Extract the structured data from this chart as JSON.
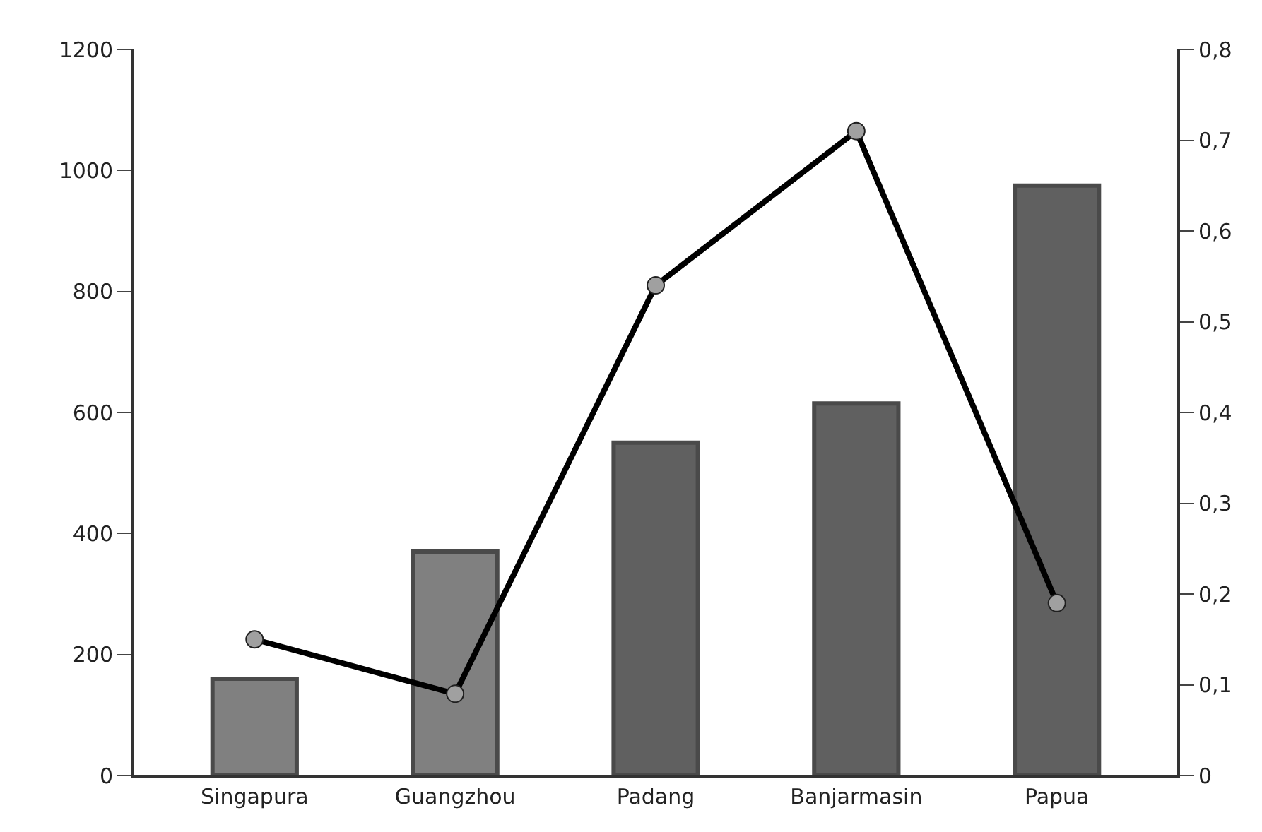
{
  "chart_data": {
    "type": "bar",
    "categories": [
      "Singapura",
      "Guangzhou",
      "Padang",
      "Banjarmasin",
      "Papua"
    ],
    "series": [
      {
        "type": "bar",
        "colors": [
          "#808080",
          "#808080",
          "#606060",
          "#606060",
          "#606060"
        ],
        "values": [
          160,
          370,
          550,
          615,
          975
        ]
      },
      {
        "type": "line",
        "axis": "y2",
        "color": "#000000",
        "values": [
          0.15,
          0.09,
          0.54,
          0.71,
          0.19
        ]
      }
    ],
    "ylim": [
      0,
      1200
    ],
    "yticks": [
      0,
      200,
      400,
      600,
      800,
      1000,
      1200
    ],
    "y2lim": [
      0,
      0.8
    ],
    "y2ticks": [
      {
        "value": 0,
        "label": "0"
      },
      {
        "value": 0.1,
        "label": "0,1"
      },
      {
        "value": 0.2,
        "label": "0,2"
      },
      {
        "value": 0.3,
        "label": "0,3"
      },
      {
        "value": 0.4,
        "label": "0,4"
      },
      {
        "value": 0.5,
        "label": "0,5"
      },
      {
        "value": 0.6,
        "label": "0,6"
      },
      {
        "value": 0.7,
        "label": "0,7"
      },
      {
        "value": 0.8,
        "label": "0,8"
      }
    ],
    "legend": false,
    "marker": "circle",
    "line_style": "solid"
  }
}
